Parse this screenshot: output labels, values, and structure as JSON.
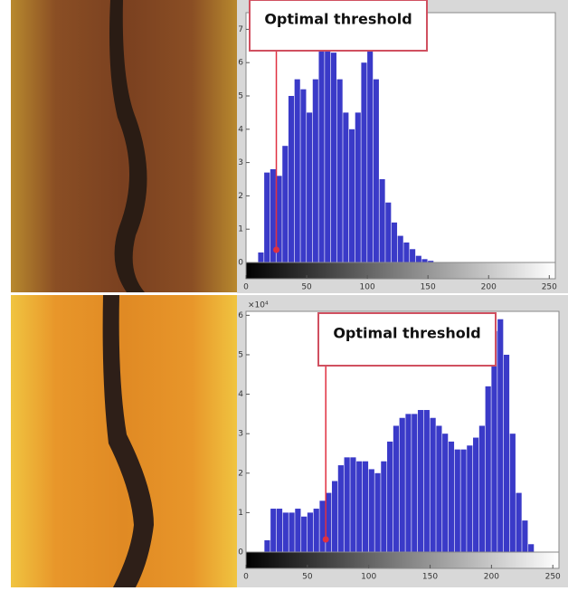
{
  "chart_data": [
    {
      "type": "histogram",
      "annotation": "Optimal threshold",
      "threshold": 25,
      "color": "#3a3ac8",
      "bins": [
        0,
        5,
        10,
        15,
        20,
        25,
        30,
        35,
        40,
        45,
        50,
        55,
        60,
        65,
        70,
        75,
        80,
        85,
        90,
        95,
        100,
        105,
        110,
        115,
        120,
        125,
        130,
        135,
        140,
        145,
        150,
        155,
        160,
        165,
        170,
        175,
        180,
        185,
        190,
        195,
        200,
        205,
        210,
        215,
        220,
        225,
        230,
        235,
        240,
        245,
        250,
        255
      ],
      "values": [
        0,
        0,
        0.3,
        2.7,
        2.8,
        2.6,
        3.5,
        5.0,
        5.5,
        5.2,
        4.5,
        5.5,
        6.6,
        6.8,
        6.3,
        5.5,
        4.5,
        4.0,
        4.5,
        6.0,
        6.7,
        5.5,
        2.5,
        1.8,
        1.2,
        0.8,
        0.6,
        0.4,
        0.2,
        0.1,
        0.05,
        0,
        0,
        0,
        0,
        0,
        0,
        0,
        0,
        0,
        0,
        0,
        0,
        0,
        0,
        0,
        0,
        0,
        0,
        0,
        0
      ],
      "xlim": [
        0,
        255
      ],
      "xticks": [
        0,
        50,
        100,
        150,
        200,
        250
      ],
      "ylim": [
        0,
        7.5
      ],
      "yticks": [
        0,
        1,
        2,
        3,
        4,
        5,
        6,
        7
      ]
    },
    {
      "type": "histogram",
      "annotation": "Optimal threshold",
      "threshold": 65,
      "color": "#3a3ac8",
      "y_multiplier": "×10⁴",
      "bins": [
        0,
        5,
        10,
        15,
        20,
        25,
        30,
        35,
        40,
        45,
        50,
        55,
        60,
        65,
        70,
        75,
        80,
        85,
        90,
        95,
        100,
        105,
        110,
        115,
        120,
        125,
        130,
        135,
        140,
        145,
        150,
        155,
        160,
        165,
        170,
        175,
        180,
        185,
        190,
        195,
        200,
        205,
        210,
        215,
        220,
        225,
        230,
        235,
        240,
        245,
        250,
        255
      ],
      "values": [
        0,
        0,
        0,
        0.3,
        1.1,
        1.1,
        1.0,
        1.0,
        1.1,
        0.9,
        1.0,
        1.1,
        1.3,
        1.5,
        1.8,
        2.2,
        2.4,
        2.4,
        2.3,
        2.3,
        2.1,
        2.0,
        2.3,
        2.8,
        3.2,
        3.4,
        3.5,
        3.5,
        3.6,
        3.6,
        3.4,
        3.2,
        3.0,
        2.8,
        2.6,
        2.6,
        2.7,
        2.9,
        3.2,
        4.2,
        5.6,
        5.9,
        5.0,
        3.0,
        1.5,
        0.8,
        0.2,
        0,
        0,
        0,
        0
      ],
      "xlim": [
        0,
        255
      ],
      "xticks": [
        0,
        50,
        100,
        150,
        200,
        250
      ],
      "ylim": [
        0,
        6.1
      ],
      "yticks": [
        0,
        1,
        2,
        3,
        4,
        5,
        6
      ]
    }
  ]
}
